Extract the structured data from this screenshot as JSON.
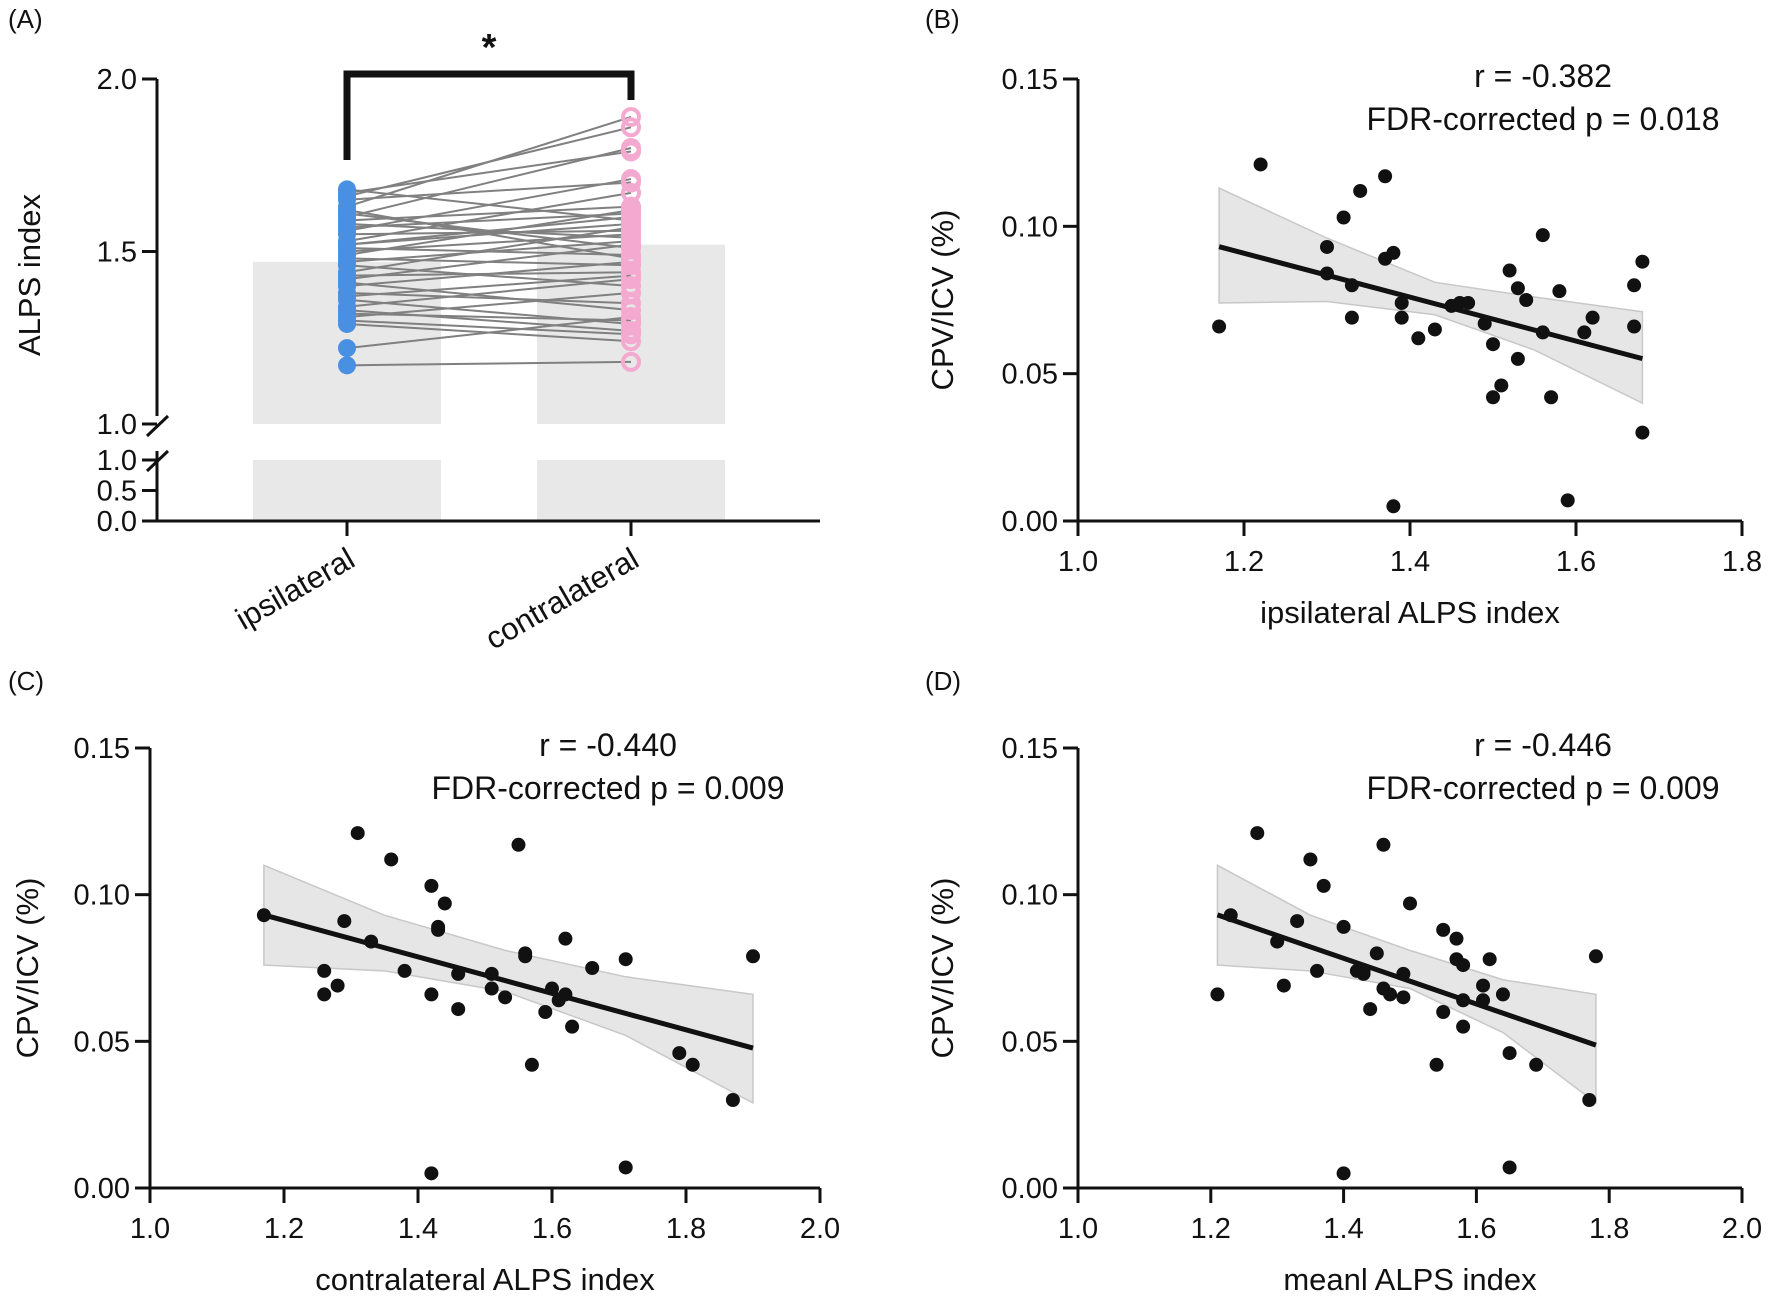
{
  "figure": {
    "panels": [
      "A",
      "B",
      "C",
      "D"
    ]
  },
  "chart_data": [
    {
      "panel": "A",
      "type": "bar",
      "panel_label": "(A)",
      "title": "",
      "ylabel": "ALPS index",
      "xlabel": "",
      "categories": [
        "ipsilateral",
        "contralateral"
      ],
      "bar_means": [
        1.47,
        1.52
      ],
      "ylim": [
        0,
        2.0
      ],
      "axis_break": [
        1.0,
        1.0
      ],
      "yticks_lower": [
        "0.0",
        "0.5",
        "1.0"
      ],
      "yticks_upper": [
        "1.0",
        "1.5",
        "2.0"
      ],
      "significance": "*",
      "colors": {
        "ipsilateral": "#4a90e2",
        "contralateral": "#f4a9d0",
        "bar": "#e8e8e8",
        "line": "#808080"
      },
      "pairs": [
        [
          1.17,
          1.18
        ],
        [
          1.22,
          1.31
        ],
        [
          1.29,
          1.24
        ],
        [
          1.3,
          1.26
        ],
        [
          1.31,
          1.38
        ],
        [
          1.32,
          1.3
        ],
        [
          1.33,
          1.27
        ],
        [
          1.34,
          1.42
        ],
        [
          1.36,
          1.29
        ],
        [
          1.37,
          1.43
        ],
        [
          1.38,
          1.35
        ],
        [
          1.4,
          1.47
        ],
        [
          1.41,
          1.33
        ],
        [
          1.42,
          1.52
        ],
        [
          1.43,
          1.44
        ],
        [
          1.44,
          1.57
        ],
        [
          1.46,
          1.4
        ],
        [
          1.47,
          1.53
        ],
        [
          1.48,
          1.46
        ],
        [
          1.49,
          1.62
        ],
        [
          1.5,
          1.55
        ],
        [
          1.51,
          1.49
        ],
        [
          1.52,
          1.6
        ],
        [
          1.52,
          1.58
        ],
        [
          1.53,
          1.67
        ],
        [
          1.55,
          1.56
        ],
        [
          1.56,
          1.71
        ],
        [
          1.57,
          1.61
        ],
        [
          1.58,
          1.54
        ],
        [
          1.59,
          1.63
        ],
        [
          1.6,
          1.8
        ],
        [
          1.61,
          1.51
        ],
        [
          1.62,
          1.48
        ],
        [
          1.63,
          1.89
        ],
        [
          1.65,
          1.7
        ],
        [
          1.66,
          1.86
        ],
        [
          1.67,
          1.79
        ],
        [
          1.68,
          1.59
        ]
      ]
    },
    {
      "panel": "B",
      "type": "scatter",
      "panel_label": "(B)",
      "xlabel": "ipsilateral ALPS index",
      "ylabel": "CPV/ICV (%)",
      "xlim": [
        1.0,
        1.8
      ],
      "ylim": [
        0.0,
        0.15
      ],
      "xticks": [
        "1.0",
        "1.2",
        "1.4",
        "1.6",
        "1.8"
      ],
      "yticks": [
        "0.00",
        "0.05",
        "0.10",
        "0.15"
      ],
      "stat_r": "r = -0.382",
      "stat_p": "FDR-corrected p = 0.018",
      "fit": {
        "x": [
          1.17,
          1.68
        ],
        "y": [
          0.0931,
          0.0551
        ]
      },
      "band": {
        "x": [
          1.17,
          1.3,
          1.43,
          1.55,
          1.68
        ],
        "upper": [
          0.113,
          0.096,
          0.081,
          0.076,
          0.071
        ],
        "lower": [
          0.074,
          0.0745,
          0.07,
          0.058,
          0.04
        ]
      },
      "x": [
        1.17,
        1.22,
        1.3,
        1.3,
        1.32,
        1.33,
        1.33,
        1.34,
        1.37,
        1.37,
        1.38,
        1.39,
        1.39,
        1.41,
        1.43,
        1.45,
        1.46,
        1.47,
        1.49,
        1.5,
        1.5,
        1.51,
        1.52,
        1.53,
        1.53,
        1.54,
        1.56,
        1.56,
        1.57,
        1.58,
        1.59,
        1.61,
        1.62,
        1.67,
        1.67,
        1.68,
        1.68,
        1.38
      ],
      "y": [
        0.066,
        0.121,
        0.084,
        0.093,
        0.103,
        0.08,
        0.069,
        0.112,
        0.117,
        0.089,
        0.091,
        0.074,
        0.069,
        0.062,
        0.065,
        0.073,
        0.074,
        0.074,
        0.067,
        0.06,
        0.042,
        0.046,
        0.085,
        0.079,
        0.055,
        0.075,
        0.097,
        0.064,
        0.042,
        0.078,
        0.007,
        0.064,
        0.069,
        0.08,
        0.066,
        0.088,
        0.03,
        0.005
      ]
    },
    {
      "panel": "C",
      "type": "scatter",
      "panel_label": "(C)",
      "xlabel": "contralateral ALPS index",
      "ylabel": "CPV/ICV (%)",
      "xlim": [
        1.0,
        2.0
      ],
      "ylim": [
        0.0,
        0.15
      ],
      "xticks": [
        "1.0",
        "1.2",
        "1.4",
        "1.6",
        "1.8",
        "2.0"
      ],
      "yticks": [
        "0.00",
        "0.05",
        "0.10",
        "0.15"
      ],
      "stat_r": "r = -0.440",
      "stat_p": "FDR-corrected p = 0.009",
      "fit": {
        "x": [
          1.17,
          1.9
        ],
        "y": [
          0.0931,
          0.0477
        ]
      },
      "band": {
        "x": [
          1.17,
          1.35,
          1.53,
          1.71,
          1.9
        ],
        "upper": [
          0.11,
          0.093,
          0.081,
          0.072,
          0.066
        ],
        "lower": [
          0.076,
          0.074,
          0.067,
          0.052,
          0.029
        ]
      },
      "x": [
        1.17,
        1.26,
        1.26,
        1.28,
        1.29,
        1.31,
        1.33,
        1.36,
        1.38,
        1.42,
        1.42,
        1.43,
        1.43,
        1.44,
        1.46,
        1.46,
        1.51,
        1.51,
        1.53,
        1.55,
        1.56,
        1.56,
        1.57,
        1.59,
        1.6,
        1.61,
        1.62,
        1.62,
        1.63,
        1.66,
        1.71,
        1.71,
        1.79,
        1.81,
        1.87,
        1.9,
        1.42
      ],
      "y": [
        0.093,
        0.074,
        0.066,
        0.069,
        0.091,
        0.121,
        0.084,
        0.112,
        0.074,
        0.103,
        0.066,
        0.088,
        0.089,
        0.097,
        0.073,
        0.061,
        0.073,
        0.068,
        0.065,
        0.117,
        0.08,
        0.079,
        0.042,
        0.06,
        0.068,
        0.064,
        0.066,
        0.085,
        0.055,
        0.075,
        0.078,
        0.007,
        0.046,
        0.042,
        0.03,
        0.079,
        0.005
      ]
    },
    {
      "panel": "D",
      "type": "scatter",
      "panel_label": "(D)",
      "xlabel": "meanl ALPS index",
      "ylabel": "CPV/ICV (%)",
      "xlim": [
        1.0,
        2.0
      ],
      "ylim": [
        0.0,
        0.15
      ],
      "xticks": [
        "1.0",
        "1.2",
        "1.4",
        "1.6",
        "1.8",
        "2.0"
      ],
      "yticks": [
        "0.00",
        "0.05",
        "0.10",
        "0.15"
      ],
      "stat_r": "r = -0.446",
      "stat_p": "FDR-corrected p = 0.009",
      "fit": {
        "x": [
          1.21,
          1.78
        ],
        "y": [
          0.0931,
          0.0487
        ]
      },
      "band": {
        "x": [
          1.21,
          1.35,
          1.5,
          1.64,
          1.78
        ],
        "upper": [
          0.11,
          0.093,
          0.081,
          0.071,
          0.066
        ],
        "lower": [
          0.076,
          0.074,
          0.068,
          0.053,
          0.029
        ]
      },
      "x": [
        1.21,
        1.23,
        1.27,
        1.3,
        1.31,
        1.33,
        1.35,
        1.36,
        1.37,
        1.4,
        1.42,
        1.43,
        1.43,
        1.44,
        1.45,
        1.46,
        1.46,
        1.47,
        1.49,
        1.49,
        1.5,
        1.54,
        1.55,
        1.55,
        1.57,
        1.57,
        1.58,
        1.58,
        1.58,
        1.61,
        1.61,
        1.62,
        1.64,
        1.65,
        1.65,
        1.69,
        1.77,
        1.78,
        1.4
      ],
      "y": [
        0.066,
        0.093,
        0.121,
        0.084,
        0.069,
        0.091,
        0.112,
        0.074,
        0.103,
        0.089,
        0.074,
        0.074,
        0.073,
        0.061,
        0.08,
        0.068,
        0.117,
        0.066,
        0.073,
        0.065,
        0.097,
        0.042,
        0.06,
        0.088,
        0.085,
        0.078,
        0.076,
        0.064,
        0.055,
        0.069,
        0.064,
        0.078,
        0.066,
        0.046,
        0.007,
        0.042,
        0.03,
        0.079,
        0.005
      ]
    }
  ]
}
